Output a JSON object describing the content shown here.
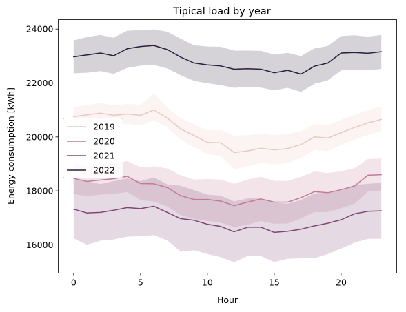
{
  "chart_data": {
    "type": "line",
    "title": "Tipical load by year",
    "xlabel": "Hour",
    "ylabel": "Energy consumption [kWh]",
    "xlim": [
      -1.15,
      24.15
    ],
    "ylim": [
      14950,
      24350
    ],
    "xticks": [
      0,
      5,
      10,
      15,
      20
    ],
    "yticks": [
      16000,
      18000,
      20000,
      22000,
      24000
    ],
    "grid": false,
    "legend_position": "center-left",
    "x": [
      0,
      1,
      2,
      3,
      4,
      5,
      6,
      7,
      8,
      9,
      10,
      11,
      12,
      13,
      14,
      15,
      16,
      17,
      18,
      19,
      20,
      21,
      22,
      23
    ],
    "series": [
      {
        "name": "2019",
        "color": "#e9c8c0",
        "values": [
          20750,
          20820,
          20880,
          20800,
          20850,
          20800,
          21000,
          20700,
          20300,
          20050,
          19800,
          19780,
          19420,
          19480,
          19580,
          19520,
          19570,
          19720,
          20000,
          19960,
          20160,
          20350,
          20520,
          20650
        ],
        "lower": [
          20400,
          20460,
          20520,
          20440,
          20480,
          20420,
          20630,
          20340,
          19900,
          19620,
          19360,
          19300,
          18800,
          18900,
          19040,
          18980,
          19030,
          19220,
          19520,
          19480,
          19700,
          19900,
          20080,
          20220
        ],
        "upper": [
          21100,
          21190,
          21260,
          21170,
          21230,
          21190,
          21620,
          21070,
          20700,
          20470,
          20240,
          20260,
          20050,
          20060,
          20120,
          20060,
          20110,
          20220,
          20470,
          20440,
          20640,
          20820,
          21000,
          21120
        ]
      },
      {
        "name": "2020",
        "color": "#c27a98",
        "values": [
          18460,
          18350,
          18400,
          18450,
          18540,
          18270,
          18260,
          18120,
          17820,
          17680,
          17680,
          17620,
          17450,
          17580,
          17700,
          17580,
          17580,
          17750,
          17970,
          17930,
          18040,
          18180,
          18580,
          18600
        ],
        "lower": [
          17880,
          17800,
          17860,
          17880,
          17960,
          17660,
          17600,
          17420,
          17100,
          16960,
          16880,
          16820,
          16660,
          16740,
          16880,
          16780,
          16790,
          16980,
          17210,
          17210,
          17360,
          17520,
          17980,
          18000
        ],
        "upper": [
          19040,
          18900,
          18950,
          19020,
          19100,
          18880,
          18910,
          18830,
          18580,
          18420,
          18440,
          18420,
          18260,
          18420,
          18520,
          18370,
          18370,
          18520,
          18720,
          18660,
          18730,
          18840,
          19180,
          19200
        ]
      },
      {
        "name": "2021",
        "color": "#7e4675",
        "values": [
          17320,
          17180,
          17200,
          17280,
          17380,
          17340,
          17430,
          17200,
          16970,
          16910,
          16760,
          16680,
          16480,
          16650,
          16650,
          16460,
          16500,
          16580,
          16700,
          16800,
          16930,
          17150,
          17240,
          17260
        ],
        "lower": [
          16240,
          16000,
          16150,
          16200,
          16300,
          16320,
          16360,
          16160,
          15750,
          15800,
          15660,
          15540,
          15350,
          15580,
          15580,
          15360,
          15480,
          15500,
          15500,
          15660,
          15860,
          16080,
          16220,
          16220
        ],
        "upper": [
          18400,
          18360,
          18250,
          18360,
          18460,
          18360,
          18500,
          18240,
          18190,
          18020,
          17860,
          17820,
          17610,
          17720,
          17720,
          17560,
          17520,
          17660,
          17900,
          17940,
          18000,
          18220,
          18260,
          18300
        ]
      },
      {
        "name": "2022",
        "color": "#2b1e3e",
        "values": [
          22970,
          23040,
          23110,
          23010,
          23270,
          23350,
          23390,
          23240,
          22960,
          22740,
          22670,
          22630,
          22510,
          22530,
          22510,
          22380,
          22470,
          22330,
          22620,
          22740,
          23110,
          23130,
          23100,
          23160
        ],
        "lower": [
          22360,
          22380,
          22440,
          22340,
          22560,
          22640,
          22670,
          22540,
          22290,
          22080,
          21990,
          21920,
          21820,
          21860,
          21830,
          21730,
          21820,
          21670,
          21970,
          22100,
          22470,
          22490,
          22480,
          22520
        ],
        "upper": [
          23580,
          23700,
          23780,
          23680,
          23940,
          23960,
          23990,
          23900,
          23640,
          23400,
          23350,
          23340,
          23200,
          23200,
          23190,
          23050,
          23120,
          23000,
          23280,
          23370,
          23740,
          23770,
          23720,
          23780
        ]
      }
    ]
  }
}
